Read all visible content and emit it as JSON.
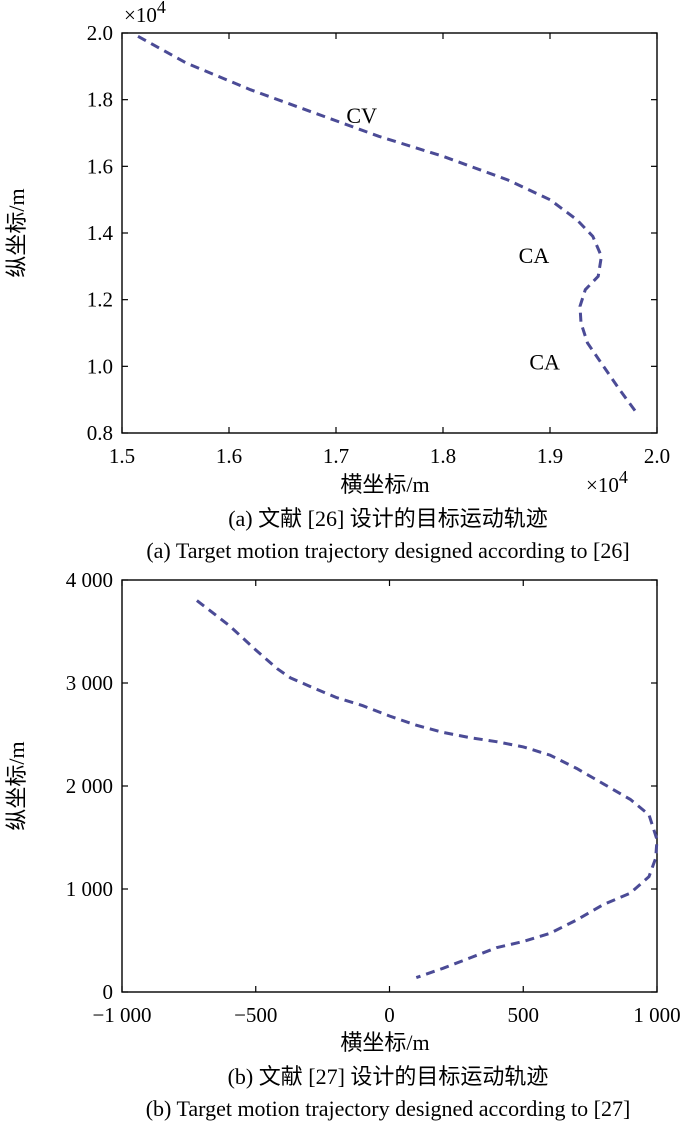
{
  "chart_data": [
    {
      "type": "line",
      "caption_cn": "(a) 文献 [26] 设计的目标运动轨迹",
      "caption_en": "(a) Target motion trajectory designed according to [26]",
      "xlabel": "横坐标/m",
      "ylabel": "纵坐标/m",
      "x_multiplier": "×10",
      "y_multiplier": "×10",
      "multiplier_exp": "4",
      "xlim": [
        1.5,
        2.0
      ],
      "ylim": [
        0.8,
        2.0
      ],
      "xticks": [
        1.5,
        1.6,
        1.7,
        1.8,
        1.9,
        2.0
      ],
      "xtick_labels": [
        "1.5",
        "1.6",
        "1.7",
        "1.8",
        "1.9",
        "2.0"
      ],
      "yticks": [
        0.8,
        1.0,
        1.2,
        1.4,
        1.6,
        1.8,
        2.0
      ],
      "ytick_labels": [
        "0.8",
        "1.0",
        "1.2",
        "1.4",
        "1.6",
        "1.8",
        "2.0"
      ],
      "grid": false,
      "series": [
        {
          "color": "#4b4b96",
          "style": "dashed",
          "x": [
            1.515,
            1.56,
            1.62,
            1.68,
            1.74,
            1.8,
            1.86,
            1.9,
            1.925,
            1.94,
            1.948,
            1.945,
            1.933,
            1.928,
            1.929,
            1.935,
            1.95,
            1.965,
            1.981
          ],
          "y": [
            1.99,
            1.91,
            1.83,
            1.76,
            1.69,
            1.63,
            1.56,
            1.5,
            1.44,
            1.39,
            1.33,
            1.27,
            1.23,
            1.18,
            1.13,
            1.07,
            1.0,
            0.93,
            0.86
          ]
        }
      ],
      "annotations": [
        {
          "text": "CV",
          "x": 1.724,
          "y": 1.73
        },
        {
          "text": "CA",
          "x": 1.885,
          "y": 1.31
        },
        {
          "text": "CA",
          "x": 1.895,
          "y": 0.99
        }
      ]
    },
    {
      "type": "line",
      "caption_cn": "(b) 文献 [27] 设计的目标运动轨迹",
      "caption_en": "(b) Target motion trajectory designed according to [27]",
      "xlabel": "横坐标/m",
      "ylabel": "纵坐标/m",
      "xlim": [
        -1000,
        1000
      ],
      "ylim": [
        0,
        4000
      ],
      "xticks": [
        -1000,
        -500,
        0,
        500,
        1000
      ],
      "xtick_labels": [
        "−1 000",
        "−500",
        "0",
        "500",
        "1 000"
      ],
      "yticks": [
        0,
        1000,
        2000,
        3000,
        4000
      ],
      "ytick_labels": [
        "0",
        "1 000",
        "2 000",
        "3 000",
        "4 000"
      ],
      "grid": false,
      "series": [
        {
          "color": "#4b4b96",
          "style": "dashed",
          "x": [
            -720,
            -600,
            -500,
            -420,
            -370,
            -300,
            -200,
            -100,
            0,
            100,
            200,
            300,
            400,
            500,
            600,
            700,
            800,
            900,
            970,
            1000,
            995,
            970,
            900,
            800,
            700,
            600,
            500,
            450,
            400,
            300,
            200,
            100
          ],
          "y": [
            3800,
            3560,
            3320,
            3140,
            3050,
            2970,
            2860,
            2780,
            2680,
            2590,
            2520,
            2470,
            2430,
            2380,
            2300,
            2170,
            2020,
            1870,
            1720,
            1480,
            1300,
            1120,
            960,
            850,
            700,
            570,
            490,
            460,
            430,
            330,
            230,
            140
          ]
        }
      ],
      "annotations": []
    }
  ]
}
